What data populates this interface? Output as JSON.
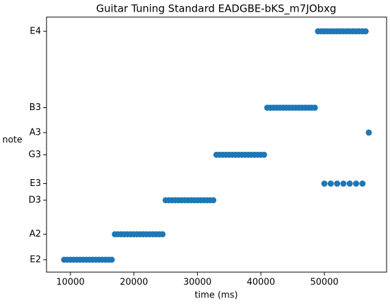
{
  "chart_data": {
    "type": "scatter",
    "title": "Guitar Tuning Standard EADGBE-bKS_m7JObxg",
    "x_label": "time (ms)",
    "y_label": "note",
    "xlim": [
      6230,
      59800
    ],
    "ylim": [
      69,
      345
    ],
    "xticks": [
      10000,
      20000,
      30000,
      40000,
      50000
    ],
    "yticks": [
      {
        "value": 82.41,
        "label": "E2"
      },
      {
        "value": 110,
        "label": "A2"
      },
      {
        "value": 146.83,
        "label": "D3"
      },
      {
        "value": 164.81,
        "label": "E3"
      },
      {
        "value": 196,
        "label": "G3"
      },
      {
        "value": 220,
        "label": "A3"
      },
      {
        "value": 246.94,
        "label": "B3"
      },
      {
        "value": 329.63,
        "label": "E4"
      }
    ],
    "grid": false,
    "series": [
      {
        "color": "#1f77b4",
        "x": [
          9000,
          9500,
          10000,
          10500,
          11000,
          11500,
          12000,
          12500,
          13000,
          13500,
          14000,
          14500,
          15000,
          15500,
          16000,
          16500,
          17000,
          17500,
          18000,
          18500,
          19000,
          19500,
          20000,
          20500,
          21000,
          21500,
          22000,
          22500,
          23000,
          23500,
          24000,
          24500,
          25000,
          25500,
          26000,
          26500,
          27000,
          27500,
          28000,
          28500,
          29000,
          29500,
          30000,
          30500,
          31000,
          31500,
          32000,
          32500,
          33000,
          33500,
          34000,
          34500,
          35000,
          35500,
          36000,
          36500,
          37000,
          37500,
          38000,
          38500,
          39000,
          39500,
          40000,
          40500,
          41000,
          41500,
          42000,
          42500,
          43000,
          43500,
          44000,
          44500,
          45000,
          45500,
          46000,
          46500,
          47000,
          47500,
          48000,
          48500,
          49000,
          49500,
          50000,
          50500,
          51000,
          51500,
          52000,
          52500,
          53000,
          53500,
          54000,
          54500,
          55000,
          55500,
          56000,
          56500,
          50000,
          51000,
          52000,
          53000,
          54000,
          55000,
          56000,
          57000
        ],
        "values": [
          82.41,
          82.41,
          82.41,
          82.41,
          82.41,
          82.41,
          82.41,
          82.41,
          82.41,
          82.41,
          82.41,
          82.41,
          82.41,
          82.41,
          82.41,
          82.41,
          110,
          110,
          110,
          110,
          110,
          110,
          110,
          110,
          110,
          110,
          110,
          110,
          110,
          110,
          110,
          110,
          146.83,
          146.83,
          146.83,
          146.83,
          146.83,
          146.83,
          146.83,
          146.83,
          146.83,
          146.83,
          146.83,
          146.83,
          146.83,
          146.83,
          146.83,
          146.83,
          196,
          196,
          196,
          196,
          196,
          196,
          196,
          196,
          196,
          196,
          196,
          196,
          196,
          196,
          196,
          196,
          246.94,
          246.94,
          246.94,
          246.94,
          246.94,
          246.94,
          246.94,
          246.94,
          246.94,
          246.94,
          246.94,
          246.94,
          246.94,
          246.94,
          246.94,
          246.94,
          329.63,
          329.63,
          329.63,
          329.63,
          329.63,
          329.63,
          329.63,
          329.63,
          329.63,
          329.63,
          329.63,
          329.63,
          329.63,
          329.63,
          329.63,
          329.63,
          164.81,
          164.81,
          164.81,
          164.81,
          164.81,
          164.81,
          164.81,
          220
        ]
      }
    ]
  }
}
